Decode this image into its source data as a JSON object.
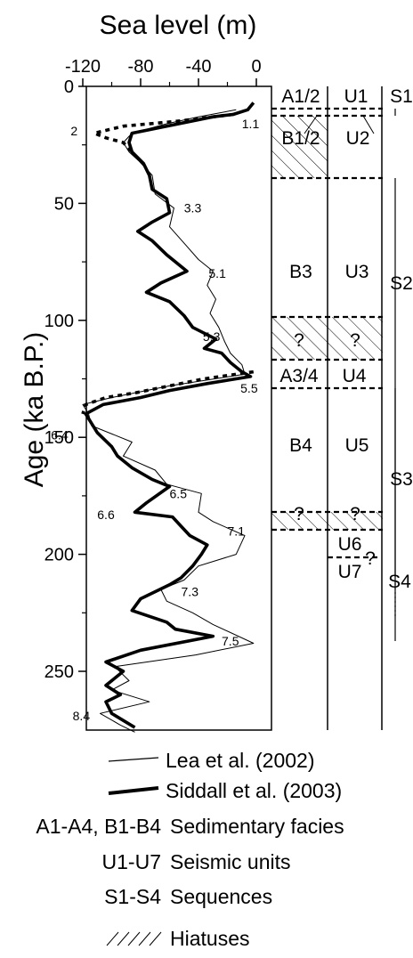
{
  "chart_data": {
    "type": "line",
    "title": "Sea level (m)",
    "xlabel": "Sea level (m)",
    "ylabel": "Age (ka B.P.)",
    "x_ticks": [
      "-120",
      "-80",
      "-40",
      "0"
    ],
    "x_tick_values": [
      -120,
      -80,
      -40,
      0
    ],
    "y_ticks": [
      "0",
      "50",
      "100",
      "150",
      "200",
      "250"
    ],
    "y_tick_values": [
      0,
      50,
      100,
      150,
      200,
      250
    ],
    "xlim": [
      -125,
      5
    ],
    "ylim": [
      0,
      275
    ],
    "y_inverted": true,
    "series": [
      {
        "name": "Lea et al. (2002)",
        "style": "thin",
        "points": [
          [
            -14,
            10
          ],
          [
            -40,
            13
          ],
          [
            -62,
            16
          ],
          [
            -86,
            20
          ],
          [
            -92,
            24
          ],
          [
            -88,
            28
          ],
          [
            -81,
            32
          ],
          [
            -72,
            38
          ],
          [
            -70,
            46
          ],
          [
            -57,
            52
          ],
          [
            -60,
            60
          ],
          [
            -50,
            67
          ],
          [
            -40,
            74
          ],
          [
            -30,
            79
          ],
          [
            -34,
            85
          ],
          [
            -28,
            91
          ],
          [
            -32,
            97
          ],
          [
            -26,
            103
          ],
          [
            -22,
            109
          ],
          [
            -18,
            114
          ],
          [
            -10,
            119
          ],
          [
            -8,
            123
          ],
          [
            -60,
            128
          ],
          [
            -100,
            133
          ],
          [
            -120,
            136
          ],
          [
            -116,
            140
          ],
          [
            -114,
            145
          ],
          [
            -86,
            152
          ],
          [
            -92,
            158
          ],
          [
            -70,
            164
          ],
          [
            -62,
            170
          ],
          [
            -38,
            174
          ],
          [
            -40,
            182
          ],
          [
            -30,
            186
          ],
          [
            -8,
            192
          ],
          [
            -14,
            200
          ],
          [
            -40,
            205
          ],
          [
            -50,
            211
          ],
          [
            -66,
            215
          ],
          [
            -62,
            220
          ],
          [
            -44,
            225
          ],
          [
            -30,
            230
          ],
          [
            -2,
            238
          ],
          [
            -42,
            243
          ],
          [
            -98,
            248
          ],
          [
            -88,
            254
          ],
          [
            -100,
            258
          ],
          [
            -74,
            263
          ],
          [
            -108,
            268
          ],
          [
            -94,
            273
          ],
          [
            -84,
            276
          ]
        ]
      },
      {
        "name": "Siddall et al. (2003)",
        "style": "thick",
        "points": [
          [
            -2,
            7
          ],
          [
            -6,
            10
          ],
          [
            -16,
            12
          ],
          [
            -30,
            13
          ],
          [
            -86,
            20
          ],
          [
            -88,
            24
          ],
          [
            -86,
            28
          ],
          [
            -78,
            33
          ],
          [
            -74,
            38
          ],
          [
            -72,
            44
          ],
          [
            -62,
            48
          ],
          [
            -60,
            54
          ],
          [
            -72,
            58
          ],
          [
            -82,
            62
          ],
          [
            -72,
            66
          ],
          [
            -62,
            72
          ],
          [
            -48,
            79
          ],
          [
            -66,
            84
          ],
          [
            -76,
            88
          ],
          [
            -60,
            92
          ],
          [
            -50,
            98
          ],
          [
            -44,
            103
          ],
          [
            -28,
            108
          ],
          [
            -36,
            112
          ],
          [
            -24,
            114
          ],
          [
            -18,
            118
          ],
          [
            -10,
            122
          ],
          [
            -4,
            124
          ],
          [
            -34,
            127
          ],
          [
            -60,
            130
          ],
          [
            -80,
            133
          ],
          [
            -106,
            136
          ],
          [
            -118,
            140
          ],
          [
            -114,
            144
          ],
          [
            -110,
            148
          ],
          [
            -100,
            154
          ],
          [
            -96,
            158
          ],
          [
            -86,
            163
          ],
          [
            -72,
            168
          ],
          [
            -60,
            171
          ],
          [
            -76,
            178
          ],
          [
            -84,
            182
          ],
          [
            -58,
            184
          ],
          [
            -52,
            188
          ],
          [
            -46,
            192
          ],
          [
            -34,
            196
          ],
          [
            -38,
            200
          ],
          [
            -44,
            205
          ],
          [
            -52,
            210
          ],
          [
            -60,
            213
          ],
          [
            -80,
            219
          ],
          [
            -86,
            224
          ],
          [
            -62,
            229
          ],
          [
            -56,
            232
          ],
          [
            -30,
            235
          ],
          [
            -80,
            241
          ],
          [
            -104,
            246
          ],
          [
            -92,
            250
          ],
          [
            -104,
            256
          ],
          [
            -94,
            260
          ],
          [
            -104,
            263
          ],
          [
            -100,
            268
          ],
          [
            -84,
            274
          ]
        ]
      },
      {
        "name": "Siddall et al. (2003) dotted gaps",
        "style": "dotted-thick",
        "segments": [
          [
            [
              -16,
              12
            ],
            [
              -56,
              15
            ],
            [
              -92,
              17
            ],
            [
              -112,
              20
            ],
            [
              -104,
              22
            ],
            [
              -92,
              24
            ],
            [
              -86,
              28
            ]
          ],
          [
            [
              -2,
              122
            ],
            [
              -36,
              125
            ],
            [
              -60,
              128
            ],
            [
              -84,
              131
            ],
            [
              -104,
              133
            ],
            [
              -118,
              136
            ],
            [
              -120,
              140
            ]
          ]
        ]
      }
    ],
    "mis_labels": [
      {
        "text": "1.1",
        "x": -4,
        "y": 16
      },
      {
        "text": "2",
        "x": -126,
        "y": 19
      },
      {
        "text": "3.3",
        "x": -44,
        "y": 52
      },
      {
        "text": "5.1",
        "x": -27,
        "y": 80
      },
      {
        "text": "5.3",
        "x": -31,
        "y": 107
      },
      {
        "text": "5.5",
        "x": -5,
        "y": 129
      },
      {
        "text": "6.4",
        "x": -136,
        "y": 149
      },
      {
        "text": "6.5",
        "x": -54,
        "y": 174
      },
      {
        "text": "6.6",
        "x": -104,
        "y": 183
      },
      {
        "text": "7.1",
        "x": -14,
        "y": 190
      },
      {
        "text": "7.3",
        "x": -46,
        "y": 216
      },
      {
        "text": "7.5",
        "x": -18,
        "y": 237
      },
      {
        "text": "8.4",
        "x": -121,
        "y": 269
      }
    ],
    "facies": [
      "A1/2",
      "B1/2",
      "B3",
      "A3/4",
      "B4"
    ],
    "seismic_units": [
      "U1",
      "U2",
      "U3",
      "U4",
      "U5",
      "U6",
      "U7"
    ],
    "sequences": [
      "S1",
      "S2",
      "S3",
      "S4"
    ],
    "question_mark": "?",
    "legend": [
      {
        "key": "Lea et al. (2002)",
        "symbol": "thin-line"
      },
      {
        "key": "Siddall et al. (2003)",
        "symbol": "thick-line"
      },
      {
        "key": "A1-A4, B1-B4",
        "desc": "Sedimentary facies"
      },
      {
        "key": "U1-U7",
        "desc": "Seismic units"
      },
      {
        "key": "S1-S4",
        "desc": "Sequences"
      },
      {
        "key": "",
        "desc": "Hiatuses",
        "symbol": "hatch"
      }
    ]
  }
}
